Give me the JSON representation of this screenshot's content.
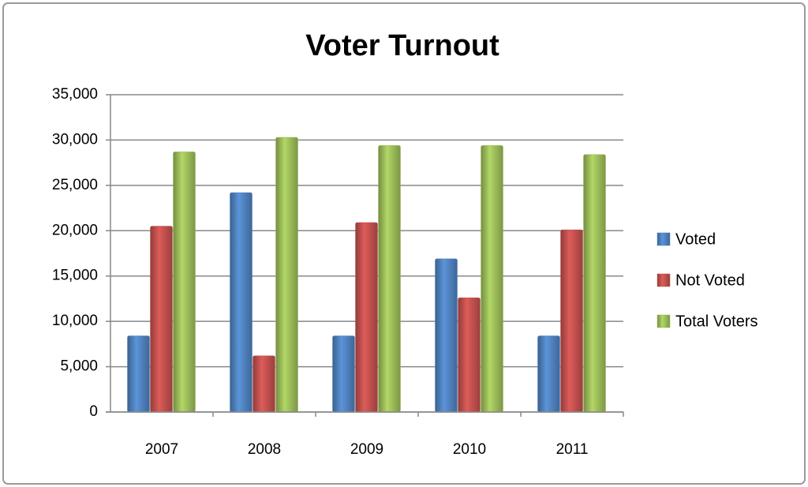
{
  "chart_data": {
    "type": "bar",
    "title": "Voter Turnout",
    "categories": [
      "2007",
      "2008",
      "2009",
      "2010",
      "2011"
    ],
    "series": [
      {
        "name": "Voted",
        "color": "#4f81bd",
        "values": [
          8400,
          24200,
          8400,
          16900,
          8400
        ]
      },
      {
        "name": "Not Voted",
        "color": "#c0504d",
        "values": [
          20500,
          6200,
          20900,
          12600,
          20100
        ]
      },
      {
        "name": "Total Voters",
        "color": "#9bbb59",
        "values": [
          28700,
          30300,
          29400,
          29400,
          28400
        ]
      }
    ],
    "ylim": [
      0,
      35000
    ],
    "yticks": [
      0,
      {
        "value": 5000,
        "label": "5,000"
      },
      {
        "value": 10000,
        "label": "10,000"
      },
      {
        "value": 15000,
        "label": "15,000"
      },
      {
        "value": 20000,
        "label": "20,000"
      },
      {
        "value": 25000,
        "label": "25,000"
      },
      {
        "value": 30000,
        "label": "30,000"
      },
      {
        "value": 35000,
        "label": "35,000"
      }
    ],
    "grid": true,
    "legend": "right"
  }
}
